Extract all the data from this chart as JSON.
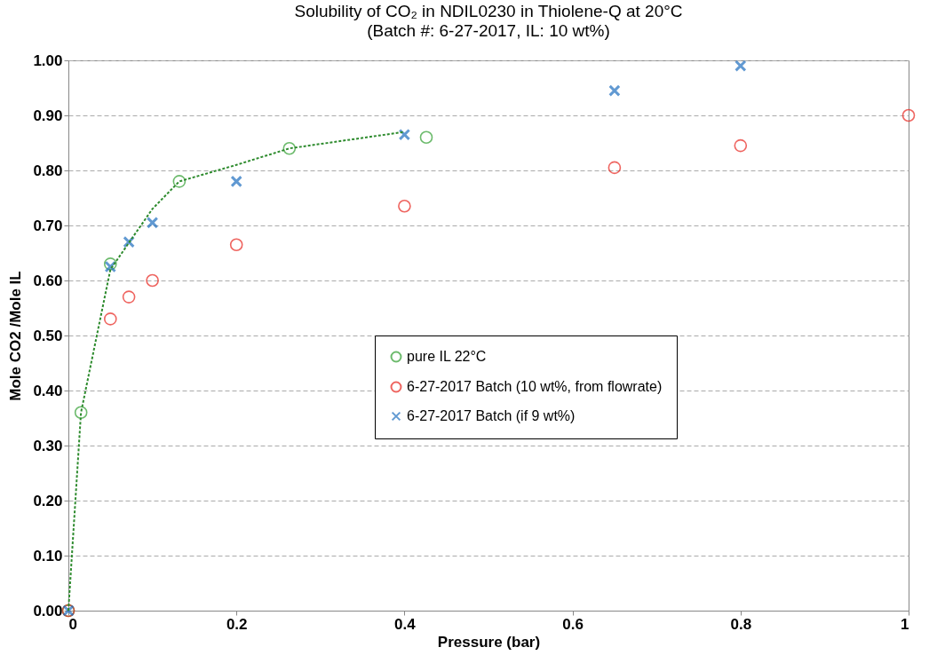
{
  "chart_data": {
    "type": "scatter",
    "title": "Solubility of CO₂ in NDIL0230 in Thiolene-Q at 20°C",
    "subtitle": "(Batch #: 6-27-2017, IL: 10 wt%)",
    "xlabel": "Pressure (bar)",
    "ylabel": "Mole CO2 /Mole IL",
    "xlim": [
      0,
      1
    ],
    "xticks": [
      0,
      0.2,
      0.4,
      0.6,
      0.8,
      1
    ],
    "ylim": [
      0,
      1
    ],
    "yticks": [
      {
        "value": 0,
        "label": "0.00"
      },
      {
        "value": 0.1,
        "label": "0.10"
      },
      {
        "value": 0.2,
        "label": "0.20"
      },
      {
        "value": 0.3,
        "label": "0.30"
      },
      {
        "value": 0.4,
        "label": "0.40"
      },
      {
        "value": 0.5,
        "label": "0.50"
      },
      {
        "value": 0.6,
        "label": "0.60"
      },
      {
        "value": 0.7,
        "label": "0.70"
      },
      {
        "value": 0.8,
        "label": "0.80"
      },
      {
        "value": 0.9,
        "label": "0.90"
      },
      {
        "value": 1,
        "label": "1.00"
      }
    ],
    "grid": "y",
    "legend": "right",
    "series": [
      {
        "type": "line",
        "color": "#2e8b2e",
        "line_style": "dashed",
        "marker": "none",
        "x": [
          0,
          0.015,
          0.05,
          0.1,
          0.132,
          0.2,
          0.263,
          0.4
        ],
        "values": [
          0,
          0.36,
          0.62,
          0.73,
          0.78,
          0.81,
          0.84,
          0.87
        ]
      },
      {
        "name": "pure IL 22°C",
        "color": "#2e9e2e",
        "marker": "circle",
        "x": [
          0,
          0.015,
          0.05,
          0.132,
          0.263,
          0.426
        ],
        "values": [
          0,
          0.36,
          0.63,
          0.78,
          0.84,
          0.86
        ]
      },
      {
        "name": "6-27-2017 Batch (10 wt%, from flowrate)",
        "color": "#e8231c",
        "marker": "circle",
        "x": [
          0,
          0.05,
          0.072,
          0.1,
          0.2,
          0.4,
          0.65,
          0.8,
          1
        ],
        "values": [
          0,
          0.53,
          0.57,
          0.6,
          0.665,
          0.735,
          0.805,
          0.845,
          0.9
        ]
      },
      {
        "name": "6-27-2017 Batch (if 9 wt%)",
        "color": "#1f6fbf",
        "marker": "cross",
        "x": [
          0,
          0.05,
          0.072,
          0.1,
          0.2,
          0.4,
          0.65,
          0.8
        ],
        "values": [
          0,
          0.625,
          0.67,
          0.705,
          0.78,
          0.865,
          0.945,
          0.99
        ]
      }
    ]
  }
}
